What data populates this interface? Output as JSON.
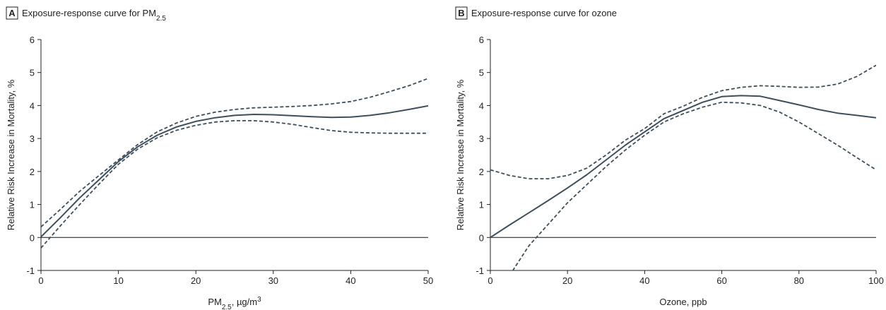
{
  "chart_data": [
    {
      "type": "line",
      "panel": "A",
      "title": [
        {
          "text": "Exposure-response curve for PM"
        },
        {
          "text": "2.5",
          "shift": "sub"
        }
      ],
      "xlabel": [
        {
          "text": "PM"
        },
        {
          "text": "2.5",
          "shift": "sub"
        },
        {
          "text": ", µg/m"
        },
        {
          "text": "3",
          "shift": "super"
        }
      ],
      "ylabel": "Relative Risk Increase in Mortality, %",
      "x": [
        0,
        2.5,
        5,
        7.5,
        10,
        12.5,
        15,
        17.5,
        20,
        22.5,
        25,
        27.5,
        30,
        32.5,
        35,
        37.5,
        40,
        42.5,
        45,
        47.5,
        50
      ],
      "series": [
        {
          "color": "#3d4f5c",
          "style": "solid",
          "values": [
            0.02,
            0.6,
            1.2,
            1.75,
            2.3,
            2.75,
            3.1,
            3.35,
            3.52,
            3.63,
            3.7,
            3.73,
            3.72,
            3.69,
            3.66,
            3.64,
            3.65,
            3.7,
            3.78,
            3.88,
            3.99
          ]
        },
        {
          "color": "#3d4f5c",
          "style": "dashed",
          "values": [
            0.32,
            0.85,
            1.4,
            1.88,
            2.35,
            2.82,
            3.2,
            3.47,
            3.67,
            3.8,
            3.88,
            3.93,
            3.95,
            3.97,
            4.0,
            4.05,
            4.12,
            4.25,
            4.42,
            4.6,
            4.82
          ]
        },
        {
          "color": "#3d4f5c",
          "style": "dashed",
          "values": [
            -0.32,
            0.35,
            1.0,
            1.62,
            2.22,
            2.68,
            3.02,
            3.25,
            3.4,
            3.5,
            3.54,
            3.54,
            3.5,
            3.43,
            3.33,
            3.24,
            3.19,
            3.17,
            3.16,
            3.16,
            3.16
          ]
        }
      ],
      "reference_line": 0,
      "xlim": [
        0,
        50
      ],
      "xticks": [
        0,
        10,
        20,
        30,
        40,
        50
      ],
      "ylim": [
        -1,
        6
      ],
      "yticks": [
        -1,
        0,
        1,
        2,
        3,
        4,
        5,
        6
      ]
    },
    {
      "type": "line",
      "panel": "B",
      "title": [
        {
          "text": "Exposure-response curve for ozone"
        }
      ],
      "xlabel": [
        {
          "text": "Ozone, ppb"
        }
      ],
      "ylabel": "Relative Risk Increase in Mortality, %",
      "x": [
        0,
        5,
        10,
        15,
        20,
        25,
        30,
        35,
        40,
        45,
        50,
        55,
        60,
        65,
        70,
        75,
        80,
        85,
        90,
        95,
        100
      ],
      "series": [
        {
          "color": "#3d4f5c",
          "style": "solid",
          "values": [
            0,
            0.38,
            0.75,
            1.12,
            1.5,
            1.9,
            2.35,
            2.8,
            3.2,
            3.6,
            3.85,
            4.1,
            4.27,
            4.3,
            4.28,
            4.15,
            4.02,
            3.88,
            3.77,
            3.7,
            3.63
          ]
        },
        {
          "color": "#3d4f5c",
          "style": "dashed",
          "values": [
            2.05,
            1.88,
            1.78,
            1.78,
            1.88,
            2.1,
            2.5,
            2.95,
            3.3,
            3.75,
            3.98,
            4.25,
            4.45,
            4.55,
            4.6,
            4.58,
            4.55,
            4.56,
            4.65,
            4.88,
            5.22
          ]
        },
        {
          "color": "#3d4f5c",
          "style": "dashed",
          "values": [
            null,
            -1.15,
            -0.25,
            0.4,
            1.05,
            1.6,
            2.15,
            2.65,
            3.1,
            3.5,
            3.75,
            3.95,
            4.1,
            4.08,
            4.0,
            3.8,
            3.5,
            3.15,
            2.8,
            2.42,
            2.05
          ]
        }
      ],
      "reference_line": 0,
      "xlim": [
        0,
        100
      ],
      "xticks": [
        0,
        20,
        40,
        60,
        80,
        100
      ],
      "ylim": [
        -1,
        6
      ],
      "yticks": [
        -1,
        0,
        1,
        2,
        3,
        4,
        5,
        6
      ]
    }
  ]
}
